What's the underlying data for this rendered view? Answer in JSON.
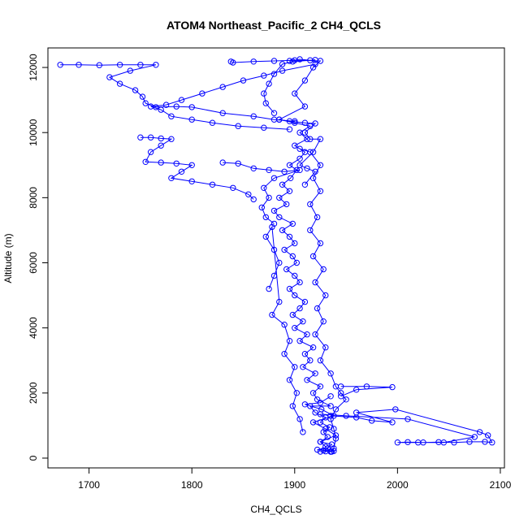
{
  "chart_data": {
    "type": "scatter",
    "title": "ATOM4 Northeast_Pacific_2 CH4_QCLS",
    "xlabel": "CH4_QCLS",
    "ylabel": "Altitude (m)",
    "xlim": [
      1660,
      2104
    ],
    "ylim": [
      -300,
      12600
    ],
    "xticks": [
      1700,
      1800,
      1900,
      2000,
      2100
    ],
    "yticks": [
      0,
      2000,
      4000,
      6000,
      8000,
      10000,
      12000
    ],
    "grid": false,
    "legend": "none",
    "marker": "open-circle",
    "connect_points": true,
    "series": [
      {
        "color": "#0000ff",
        "points": [
          [
            1935,
            200
          ],
          [
            1930,
            350
          ],
          [
            1925,
            500
          ],
          [
            1932,
            650
          ],
          [
            1928,
            800
          ],
          [
            1934,
            950
          ],
          [
            1925,
            1100
          ],
          [
            1930,
            1250
          ],
          [
            1920,
            1400
          ],
          [
            1915,
            1600
          ],
          [
            1935,
            1600
          ],
          [
            1922,
            1800
          ],
          [
            1918,
            2000
          ],
          [
            1925,
            2200
          ],
          [
            1912,
            2400
          ],
          [
            1920,
            2600
          ],
          [
            1908,
            2800
          ],
          [
            1915,
            3000
          ],
          [
            1910,
            3200
          ],
          [
            1918,
            3400
          ],
          [
            1905,
            3600
          ],
          [
            1912,
            3800
          ],
          [
            1900,
            4000
          ],
          [
            1908,
            4200
          ],
          [
            1898,
            4400
          ],
          [
            1905,
            4600
          ],
          [
            1910,
            4800
          ],
          [
            1900,
            5000
          ],
          [
            1895,
            5200
          ],
          [
            1905,
            5400
          ],
          [
            1900,
            5600
          ],
          [
            1892,
            5800
          ],
          [
            1902,
            6000
          ],
          [
            1898,
            6200
          ],
          [
            1890,
            6400
          ],
          [
            1900,
            6600
          ],
          [
            1895,
            6800
          ],
          [
            1888,
            7000
          ],
          [
            1898,
            7200
          ],
          [
            1885,
            7400
          ],
          [
            1880,
            7600
          ],
          [
            1892,
            7800
          ],
          [
            1885,
            8000
          ],
          [
            1895,
            8200
          ],
          [
            1888,
            8400
          ],
          [
            1896,
            8600
          ],
          [
            1902,
            8850
          ],
          [
            1895,
            9000
          ],
          [
            1905,
            9200
          ],
          [
            1910,
            9400
          ],
          [
            1900,
            9600
          ],
          [
            1912,
            9800
          ],
          [
            1905,
            10000
          ],
          [
            1915,
            10200
          ],
          [
            1900,
            10300
          ],
          [
            1885,
            10400
          ],
          [
            1910,
            10800
          ],
          [
            1900,
            11200
          ],
          [
            1910,
            11600
          ],
          [
            1918,
            12000
          ],
          [
            1925,
            12200
          ],
          [
            1900,
            12220
          ],
          [
            1880,
            12200
          ],
          [
            1860,
            12180
          ],
          [
            1840,
            12150
          ],
          [
            1838,
            12180
          ]
        ]
      },
      {
        "color": "#0000ff",
        "points": [
          [
            1920,
            12100
          ],
          [
            1888,
            11900
          ],
          [
            1870,
            11750
          ],
          [
            1850,
            11600
          ],
          [
            1830,
            11400
          ],
          [
            1810,
            11200
          ],
          [
            1790,
            11000
          ],
          [
            1775,
            10850
          ],
          [
            1760,
            10800
          ],
          [
            1770,
            10700
          ],
          [
            1780,
            10500
          ],
          [
            1800,
            10400
          ],
          [
            1820,
            10300
          ],
          [
            1845,
            10200
          ],
          [
            1870,
            10150
          ],
          [
            1895,
            10100
          ]
        ]
      },
      {
        "color": "#0000ff",
        "points": [
          [
            1672,
            12080
          ],
          [
            1690,
            12080
          ],
          [
            1710,
            12070
          ],
          [
            1730,
            12080
          ],
          [
            1750,
            12080
          ],
          [
            1765,
            12080
          ],
          [
            1740,
            11900
          ],
          [
            1720,
            11700
          ],
          [
            1730,
            11500
          ],
          [
            1745,
            11300
          ],
          [
            1752,
            11100
          ],
          [
            1755,
            10900
          ],
          [
            1765,
            10780
          ],
          [
            1785,
            10800
          ],
          [
            1800,
            10780
          ],
          [
            1830,
            10600
          ],
          [
            1860,
            10500
          ],
          [
            1880,
            10400
          ],
          [
            1900,
            10350
          ]
        ]
      },
      {
        "color": "#0000ff",
        "points": [
          [
            1750,
            9850
          ],
          [
            1760,
            9850
          ],
          [
            1770,
            9820
          ],
          [
            1780,
            9800
          ],
          [
            1770,
            9600
          ],
          [
            1760,
            9400
          ],
          [
            1755,
            9100
          ],
          [
            1770,
            9080
          ],
          [
            1785,
            9050
          ],
          [
            1800,
            9000
          ],
          [
            1790,
            8800
          ],
          [
            1780,
            8600
          ],
          [
            1800,
            8500
          ],
          [
            1820,
            8400
          ],
          [
            1840,
            8300
          ],
          [
            1855,
            8100
          ],
          [
            1860,
            7950
          ]
        ]
      },
      {
        "color": "#0000ff",
        "points": [
          [
            1830,
            9080
          ],
          [
            1845,
            9050
          ],
          [
            1860,
            8900
          ],
          [
            1875,
            8850
          ],
          [
            1890,
            8800
          ],
          [
            1905,
            8850
          ],
          [
            1880,
            8600
          ],
          [
            1870,
            8300
          ],
          [
            1875,
            8000
          ],
          [
            1868,
            7700
          ],
          [
            1872,
            7400
          ],
          [
            1880,
            7200
          ]
        ]
      },
      {
        "color": "#0000ff",
        "points": [
          [
            1905,
            9500
          ],
          [
            1915,
            9400
          ],
          [
            1925,
            9000
          ],
          [
            1918,
            8600
          ],
          [
            1925,
            8200
          ],
          [
            1915,
            7800
          ],
          [
            1922,
            7400
          ],
          [
            1915,
            7000
          ],
          [
            1925,
            6600
          ],
          [
            1918,
            6200
          ],
          [
            1928,
            5800
          ],
          [
            1920,
            5400
          ],
          [
            1930,
            5000
          ],
          [
            1922,
            4600
          ],
          [
            1928,
            4200
          ],
          [
            1920,
            3800
          ],
          [
            1930,
            3400
          ],
          [
            1925,
            3000
          ],
          [
            1935,
            2600
          ],
          [
            1940,
            2200
          ],
          [
            1945,
            2000
          ],
          [
            1950,
            1800
          ],
          [
            1940,
            1500
          ],
          [
            1935,
            1200
          ],
          [
            1938,
            900
          ],
          [
            1940,
            600
          ],
          [
            1938,
            300
          ],
          [
            1936,
            200
          ]
        ]
      },
      {
        "color": "#0000ff",
        "points": [
          [
            1875,
            5200
          ],
          [
            1880,
            5600
          ],
          [
            1885,
            6000
          ],
          [
            1880,
            6400
          ],
          [
            1872,
            6800
          ],
          [
            1878,
            7100
          ],
          [
            1885,
            4800
          ],
          [
            1878,
            4400
          ],
          [
            1890,
            4100
          ],
          [
            1895,
            3600
          ],
          [
            1890,
            3200
          ],
          [
            1900,
            2800
          ],
          [
            1895,
            2400
          ],
          [
            1902,
            2000
          ],
          [
            1898,
            1600
          ],
          [
            1905,
            1200
          ],
          [
            1908,
            800
          ]
        ]
      },
      {
        "color": "#0000ff",
        "points": [
          [
            1945,
            2200
          ],
          [
            1970,
            2200
          ],
          [
            1995,
            2180
          ],
          [
            1960,
            2100
          ],
          [
            1945,
            1900
          ]
        ]
      },
      {
        "color": "#0000ff",
        "points": [
          [
            1935,
            1300
          ],
          [
            1960,
            1250
          ],
          [
            1975,
            1150
          ],
          [
            1995,
            1100
          ],
          [
            1960,
            1400
          ],
          [
            1998,
            1500
          ],
          [
            2080,
            800
          ],
          [
            2088,
            700
          ],
          [
            2092,
            480
          ],
          [
            2085,
            500
          ],
          [
            2070,
            500
          ],
          [
            2055,
            480
          ],
          [
            2040,
            490
          ],
          [
            2025,
            480
          ],
          [
            2010,
            490
          ],
          [
            2000,
            480
          ],
          [
            2020,
            480
          ],
          [
            2045,
            480
          ],
          [
            2075,
            650
          ],
          [
            2010,
            1200
          ],
          [
            1950,
            1300
          ],
          [
            1925,
            1350
          ]
        ]
      },
      {
        "color": "#0000ff",
        "points": [
          [
            1925,
            200
          ],
          [
            1930,
            210
          ],
          [
            1935,
            200
          ],
          [
            1938,
            220
          ],
          [
            1928,
            240
          ],
          [
            1922,
            260
          ],
          [
            1932,
            300
          ],
          [
            1936,
            420
          ],
          [
            1925,
            500
          ],
          [
            1940,
            700
          ],
          [
            1930,
            900
          ],
          [
            1918,
            1100
          ],
          [
            1938,
            1300
          ],
          [
            1926,
            1500
          ],
          [
            1910,
            1650
          ],
          [
            1925,
            1700
          ],
          [
            1935,
            1900
          ]
        ]
      },
      {
        "color": "#0000ff",
        "points": [
          [
            1885,
            10400
          ],
          [
            1895,
            10350
          ],
          [
            1910,
            10300
          ],
          [
            1920,
            10280
          ],
          [
            1910,
            10000
          ],
          [
            1915,
            9800
          ],
          [
            1925,
            9800
          ],
          [
            1918,
            9400
          ],
          [
            1905,
            9000
          ],
          [
            1912,
            8900
          ],
          [
            1920,
            8800
          ],
          [
            1910,
            8400
          ]
        ]
      },
      {
        "color": "#0000ff",
        "points": [
          [
            1895,
            12200
          ],
          [
            1905,
            12250
          ],
          [
            1915,
            12220
          ],
          [
            1920,
            12230
          ],
          [
            1898,
            12180
          ],
          [
            1888,
            12100
          ],
          [
            1880,
            11800
          ],
          [
            1875,
            11500
          ],
          [
            1870,
            11200
          ],
          [
            1872,
            10900
          ],
          [
            1880,
            10600
          ]
        ]
      }
    ]
  }
}
